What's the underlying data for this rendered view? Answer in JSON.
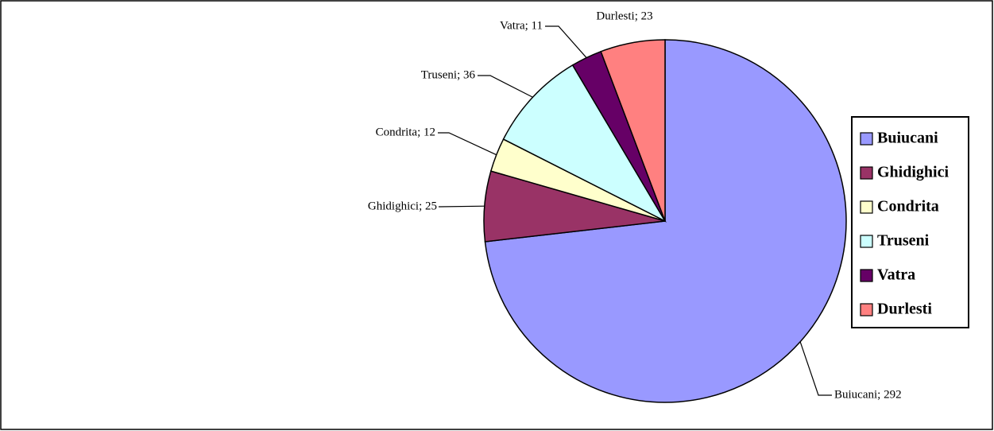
{
  "chart_data": {
    "type": "pie",
    "categories": [
      "Buiucani",
      "Ghidighici",
      "Condrita",
      "Truseni",
      "Vatra",
      "Durlesti"
    ],
    "values": [
      292,
      25,
      12,
      36,
      11,
      23
    ],
    "value_labels": [
      "Buiucani; 292",
      "Ghidighici; 25",
      "Condrita; 12",
      "Truseni; 36",
      "Vatra; 11",
      "Durlesti; 23"
    ],
    "colors": [
      "#9999ff",
      "#993366",
      "#ffffcc",
      "#ccffff",
      "#660066",
      "#ff8080"
    ],
    "legend": "right"
  }
}
